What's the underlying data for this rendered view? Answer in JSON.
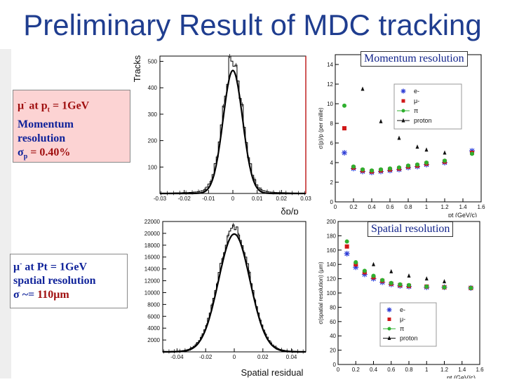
{
  "slide": {
    "title": "Preliminary Result of MDC tracking",
    "box1": {
      "line1_a": "μ",
      "line1_b": "-",
      "line1_c": " at p",
      "line1_d": "t",
      "line1_e": " = 1GeV",
      "line2": "Momentum",
      "line3": "resolution",
      "line4_a": "σ",
      "line4_b": "p",
      "line4_c": " = 0.40%"
    },
    "box2": {
      "line1_a": "μ",
      "line1_b": "-",
      "line1_c": " at Pt = 1GeV",
      "line2": "spatial resolution",
      "line3_a": "σ ~= ",
      "line3_b": "110μm"
    },
    "label_momentum": "Momentum resolution",
    "label_spatial": "Spatial resolution"
  },
  "chart_data": [
    {
      "type": "histogram",
      "title": "",
      "xlabel": "δp/p",
      "ylabel": "Tracks",
      "xlim": [
        -0.03,
        0.03
      ],
      "ylim": [
        0,
        520
      ],
      "xticks": [
        -0.03,
        -0.02,
        -0.01,
        0,
        0.01,
        0.02,
        0.03
      ],
      "xtick_labels": [
        "-0.03",
        "-0.02",
        "-0.01",
        "0",
        "0.01",
        "0.02",
        "0.03"
      ],
      "yticks": [
        100,
        200,
        300,
        400,
        500
      ],
      "ytick_labels": [
        "100",
        "200",
        "300",
        "400",
        "500"
      ],
      "sigma": 0.004,
      "peak": 480,
      "fit": "gaussian"
    },
    {
      "type": "scatter",
      "title": "",
      "xlabel": "pt (GeV/c)",
      "ylabel": "σ(p)/p (per mille)",
      "xlim": [
        0,
        1.6
      ],
      "ylim": [
        0,
        15
      ],
      "xticks": [
        0,
        0.2,
        0.4,
        0.6,
        0.8,
        1,
        1.2,
        1.4,
        1.6
      ],
      "xtick_labels": [
        "0",
        "0.2",
        "0.4",
        "0.6",
        "0.8",
        "1",
        "1.2",
        "1.4",
        "1.6"
      ],
      "yticks": [
        0,
        2,
        4,
        6,
        8,
        10,
        12,
        14
      ],
      "ytick_labels": [
        "0",
        "2",
        "4",
        "6",
        "8",
        "10",
        "12",
        "14"
      ],
      "legend_position": "top-right",
      "series": [
        {
          "name": "e-",
          "marker": "star",
          "color": "#2a3ad6",
          "x": [
            0.1,
            0.2,
            0.3,
            0.4,
            0.5,
            0.6,
            0.7,
            0.8,
            0.9,
            1.0,
            1.2,
            1.5
          ],
          "y": [
            5.0,
            3.4,
            3.1,
            3.0,
            3.1,
            3.2,
            3.3,
            3.5,
            3.6,
            3.8,
            4.0,
            5.2
          ]
        },
        {
          "name": "μ-",
          "marker": "square",
          "color": "#d01818",
          "x": [
            0.1,
            0.2,
            0.3,
            0.4,
            0.5,
            0.6,
            0.7,
            0.8,
            0.9,
            1.0,
            1.2,
            1.5
          ],
          "y": [
            7.5,
            3.5,
            3.2,
            3.1,
            3.2,
            3.3,
            3.4,
            3.6,
            3.7,
            3.9,
            4.1,
            5.0
          ]
        },
        {
          "name": "π",
          "marker": "circle",
          "color": "#2fb02f",
          "x": [
            0.1,
            0.2,
            0.3,
            0.4,
            0.5,
            0.6,
            0.7,
            0.8,
            0.9,
            1.0,
            1.2,
            1.5
          ],
          "y": [
            9.8,
            3.6,
            3.3,
            3.2,
            3.3,
            3.4,
            3.5,
            3.7,
            3.8,
            4.0,
            4.2,
            4.9
          ]
        },
        {
          "name": "proton",
          "marker": "triangle",
          "color": "#111111",
          "x": [
            0.3,
            0.5,
            0.7,
            0.9,
            1.0,
            1.2
          ],
          "y": [
            11.5,
            8.2,
            6.5,
            5.6,
            5.3,
            5.0
          ]
        }
      ]
    },
    {
      "type": "histogram",
      "title": "",
      "xlabel": "Spatial residual",
      "ylabel": "",
      "xlim": [
        -0.05,
        0.05
      ],
      "ylim": [
        0,
        22000
      ],
      "xticks": [
        -0.04,
        -0.02,
        0,
        0.02,
        0.04
      ],
      "xtick_labels": [
        "-0.04",
        "-0.02",
        "0",
        "0.02",
        "0.04"
      ],
      "yticks": [
        2000,
        4000,
        6000,
        8000,
        10000,
        12000,
        14000,
        16000,
        18000,
        20000,
        22000
      ],
      "ytick_labels": [
        "2000",
        "4000",
        "6000",
        "8000",
        "10000",
        "12000",
        "14000",
        "16000",
        "18000",
        "20000",
        "22000"
      ],
      "sigma": 0.011,
      "peak": 20500,
      "fit": "gaussian"
    },
    {
      "type": "scatter",
      "title": "",
      "xlabel": "pt (GeV/c)",
      "ylabel": "σ(spatial resolution) (μm)",
      "xlim": [
        0,
        1.6
      ],
      "ylim": [
        0,
        200
      ],
      "xticks": [
        0,
        0.2,
        0.4,
        0.6,
        0.8,
        1,
        1.2,
        1.4,
        1.6
      ],
      "xtick_labels": [
        "0",
        "0.2",
        "0.4",
        "0.6",
        "0.8",
        "1",
        "1.2",
        "1.4",
        "1.6"
      ],
      "yticks": [
        0,
        20,
        40,
        60,
        80,
        100,
        120,
        140,
        160,
        180,
        200
      ],
      "ytick_labels": [
        "0",
        "20",
        "40",
        "60",
        "80",
        "100",
        "120",
        "140",
        "160",
        "180",
        "200"
      ],
      "legend_position": "bottom-left",
      "series": [
        {
          "name": "e-",
          "marker": "star",
          "color": "#2a3ad6",
          "x": [
            0.1,
            0.2,
            0.3,
            0.4,
            0.5,
            0.6,
            0.7,
            0.8,
            1.0,
            1.2,
            1.5
          ],
          "y": [
            155,
            136,
            126,
            120,
            115,
            112,
            110,
            109,
            108,
            108,
            107
          ]
        },
        {
          "name": "μ-",
          "marker": "square",
          "color": "#d01818",
          "x": [
            0.1,
            0.2,
            0.3,
            0.4,
            0.5,
            0.6,
            0.7,
            0.8,
            1.0,
            1.2,
            1.5
          ],
          "y": [
            165,
            140,
            129,
            122,
            117,
            113,
            111,
            110,
            109,
            108,
            107
          ]
        },
        {
          "name": "π",
          "marker": "circle",
          "color": "#2fb02f",
          "x": [
            0.1,
            0.2,
            0.3,
            0.4,
            0.5,
            0.6,
            0.7,
            0.8,
            1.0,
            1.2,
            1.5
          ],
          "y": [
            172,
            143,
            131,
            124,
            118,
            114,
            112,
            111,
            109,
            108,
            107
          ]
        },
        {
          "name": "proton",
          "marker": "triangle",
          "color": "#111111",
          "x": [
            0.4,
            0.6,
            0.8,
            1.0,
            1.2
          ],
          "y": [
            140,
            130,
            124,
            120,
            116
          ]
        }
      ]
    }
  ]
}
